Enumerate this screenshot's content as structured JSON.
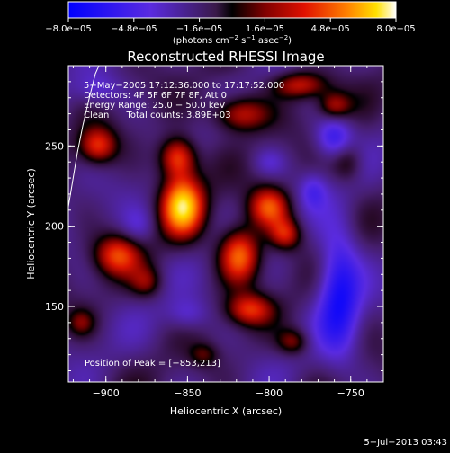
{
  "chart_data": {
    "type": "heatmap",
    "title": "Reconstructed RHESSI Image",
    "xlabel": "Heliocentric X (arcsec)",
    "ylabel": "Heliocentric Y (arcsec)",
    "xlim": [
      -923,
      -730
    ],
    "ylim": [
      103,
      300
    ],
    "x_ticks": [
      -900,
      -850,
      -800,
      -750
    ],
    "x_tick_labels": [
      "−900",
      "−850",
      "−800",
      "−750"
    ],
    "y_ticks": [
      150,
      200,
      250
    ],
    "y_tick_labels": [
      "150",
      "200",
      "250"
    ],
    "colorbar": {
      "ticks": [
        -8e-05,
        -4.8e-05,
        -1.6e-05,
        1.6e-05,
        4.8e-05,
        8e-05
      ],
      "tick_labels": [
        "−8.0e−05",
        "−4.8e−05",
        "−1.6e−05",
        "1.6e−05",
        "4.8e−05",
        "8.0e−05"
      ],
      "unit_main": "(photons cm",
      "unit_exp1": "−2",
      "unit_mid": " s",
      "unit_exp2": "−1",
      "unit_mid2": " asec",
      "unit_exp3": "−2",
      "unit_end": ")",
      "range": [
        -8e-05,
        8e-05
      ]
    },
    "annotations": [
      "5−May−2005 17:12:36.000 to 17:17:52.000",
      "Detectors: 4F 5F 6F 7F 8F, Att 0",
      "Energy Range: 25.0 − 50.0 keV",
      "Clean      Total counts: 3.89E+03"
    ],
    "peak_label": "Position of Peak = [−853,213]",
    "peak": [
      -853,
      213
    ],
    "blobs": [
      {
        "x": -853,
        "y": 213,
        "sx": 9,
        "sy": 13,
        "v": 1.0
      },
      {
        "x": -856,
        "y": 243,
        "sx": 8,
        "sy": 9,
        "v": 0.75
      },
      {
        "x": -818,
        "y": 270,
        "sx": 12,
        "sy": 8,
        "v": 0.6
      },
      {
        "x": -781,
        "y": 288,
        "sx": 12,
        "sy": 6,
        "v": 0.55
      },
      {
        "x": -760,
        "y": 275,
        "sx": 7,
        "sy": 6,
        "v": 0.45
      },
      {
        "x": -800,
        "y": 212,
        "sx": 9,
        "sy": 9,
        "v": 0.7
      },
      {
        "x": -818,
        "y": 182,
        "sx": 9,
        "sy": 12,
        "v": 0.8
      },
      {
        "x": -790,
        "y": 195,
        "sx": 7,
        "sy": 7,
        "v": 0.55
      },
      {
        "x": -812,
        "y": 148,
        "sx": 10,
        "sy": 7,
        "v": 0.55
      },
      {
        "x": -785,
        "y": 128,
        "sx": 7,
        "sy": 6,
        "v": 0.4
      },
      {
        "x": -893,
        "y": 182,
        "sx": 10,
        "sy": 9,
        "v": 0.6
      },
      {
        "x": -905,
        "y": 250,
        "sx": 8,
        "sy": 8,
        "v": 0.6
      },
      {
        "x": -875,
        "y": 165,
        "sx": 7,
        "sy": 7,
        "v": 0.35
      },
      {
        "x": -915,
        "y": 140,
        "sx": 6,
        "sy": 6,
        "v": 0.3
      },
      {
        "x": -840,
        "y": 120,
        "sx": 6,
        "sy": 5,
        "v": 0.25
      },
      {
        "x": -752,
        "y": 240,
        "sx": 7,
        "sy": 9,
        "v": 0.35
      },
      {
        "x": -757,
        "y": 160,
        "sx": 9,
        "sy": 28,
        "v": -0.65
      },
      {
        "x": -760,
        "y": 255,
        "sx": 8,
        "sy": 9,
        "v": -0.5
      },
      {
        "x": -773,
        "y": 222,
        "sx": 6,
        "sy": 8,
        "v": -0.3
      },
      {
        "x": -905,
        "y": 285,
        "sx": 10,
        "sy": 7,
        "v": -0.25
      },
      {
        "x": -880,
        "y": 200,
        "sx": 7,
        "sy": 8,
        "v": -0.2
      },
      {
        "x": -850,
        "y": 145,
        "sx": 9,
        "sy": 7,
        "v": -0.25
      },
      {
        "x": -800,
        "y": 240,
        "sx": 7,
        "sy": 6,
        "v": -0.2
      }
    ]
  },
  "footer": {
    "timestamp": "5−Jul−2013 03:43"
  }
}
